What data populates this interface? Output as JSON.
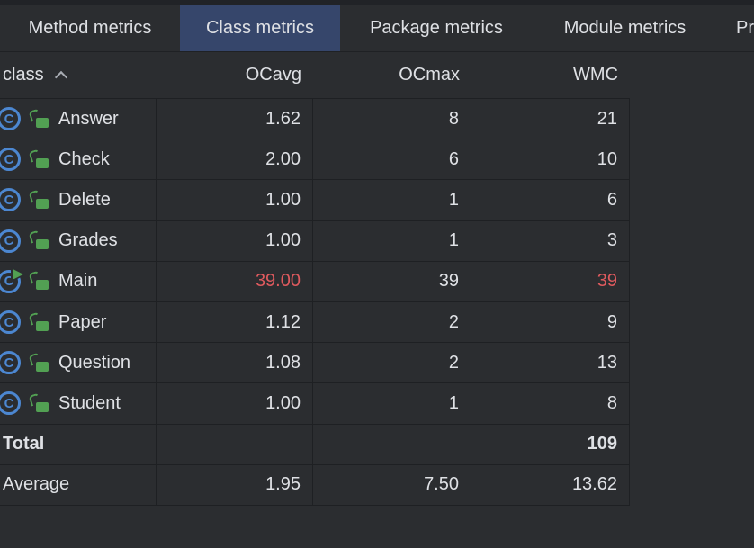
{
  "tabs": {
    "items": [
      {
        "label": "Method metrics",
        "selected": false
      },
      {
        "label": "Class metrics",
        "selected": true
      },
      {
        "label": "Package metrics",
        "selected": false
      },
      {
        "label": "Module metrics",
        "selected": false
      },
      {
        "label": "Pr",
        "selected": false
      }
    ]
  },
  "table": {
    "columns": [
      {
        "label": "class",
        "sort": "ascending"
      },
      {
        "label": "OCavg"
      },
      {
        "label": "OCmax"
      },
      {
        "label": "WMC"
      }
    ],
    "rows": [
      {
        "name": "Answer",
        "ocavg": "1.62",
        "ocmax": "8",
        "wmc": "21"
      },
      {
        "name": "Check",
        "ocavg": "2.00",
        "ocmax": "6",
        "wmc": "10"
      },
      {
        "name": "Delete",
        "ocavg": "1.00",
        "ocmax": "1",
        "wmc": "6"
      },
      {
        "name": "Grades",
        "ocavg": "1.00",
        "ocmax": "1",
        "wmc": "3"
      },
      {
        "name": "Main",
        "ocavg": "39.00",
        "ocmax": "39",
        "wmc": "39",
        "runnable": true,
        "ocavg_error": true,
        "wmc_error": true
      },
      {
        "name": "Paper",
        "ocavg": "1.12",
        "ocmax": "2",
        "wmc": "9"
      },
      {
        "name": "Question",
        "ocavg": "1.08",
        "ocmax": "2",
        "wmc": "13"
      },
      {
        "name": "Student",
        "ocavg": "1.00",
        "ocmax": "1",
        "wmc": "8"
      }
    ],
    "summary_rows": [
      {
        "label": "Total",
        "ocavg": "",
        "ocmax": "",
        "wmc": "109",
        "bold": true
      },
      {
        "label": "Average",
        "ocavg": "1.95",
        "ocmax": "7.50",
        "wmc": "13.62",
        "bold": false
      }
    ]
  },
  "colors": {
    "background": "#2b2d30",
    "selected_tab_background": "#36466b",
    "selected_tab_underline": "#3875f1",
    "grid_border": "#1e2023",
    "text": "#dfe1e5",
    "error_value": "#de5a5e",
    "class_icon_blue": "#4c87d1",
    "lock_icon_green": "#52a053"
  }
}
